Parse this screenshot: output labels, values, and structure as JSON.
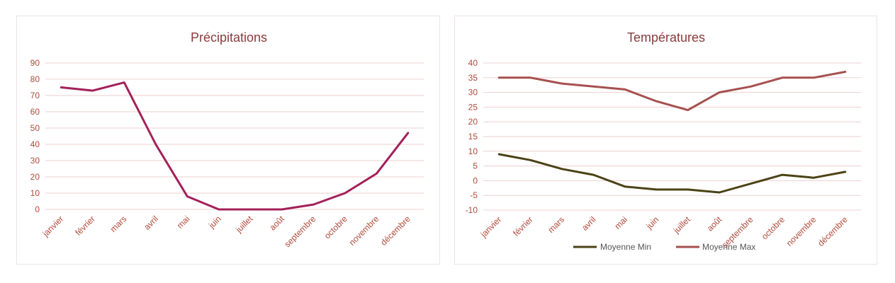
{
  "chart_data": [
    {
      "type": "line",
      "title": "Précipitations",
      "categories": [
        "janvier",
        "février",
        "mars",
        "avril",
        "mai",
        "juin",
        "juillet",
        "août",
        "septembre",
        "octobre",
        "novembre",
        "décembre"
      ],
      "series": [
        {
          "values": [
            75,
            73,
            78,
            40,
            8,
            0,
            0,
            0,
            3,
            10,
            22,
            47
          ],
          "color": "#a3205a"
        }
      ],
      "yticks": [
        0,
        10,
        20,
        30,
        40,
        50,
        60,
        70,
        80,
        90
      ],
      "ylim": [
        0,
        90
      ],
      "grid": true,
      "legend": "none"
    },
    {
      "type": "line",
      "title": "Températures",
      "categories": [
        "janvier",
        "février",
        "mars",
        "avril",
        "mai",
        "juin",
        "juillet",
        "août",
        "septembre",
        "octobre",
        "novembre",
        "décembre"
      ],
      "series": [
        {
          "name": "Moyenne Min",
          "values": [
            9,
            7,
            4,
            2,
            -2,
            -3,
            -3,
            -4,
            -1,
            2,
            1,
            3
          ],
          "color": "#4b4216"
        },
        {
          "name": "Moyenne Max",
          "values": [
            35,
            35,
            33,
            32,
            31,
            27,
            24,
            30,
            32,
            35,
            35,
            37
          ],
          "color": "#a5504f"
        }
      ],
      "yticks": [
        -10,
        -5,
        0,
        5,
        10,
        15,
        20,
        25,
        30,
        35,
        40
      ],
      "ylim": [
        -10,
        40
      ],
      "grid": true,
      "legend": "bottom"
    }
  ]
}
